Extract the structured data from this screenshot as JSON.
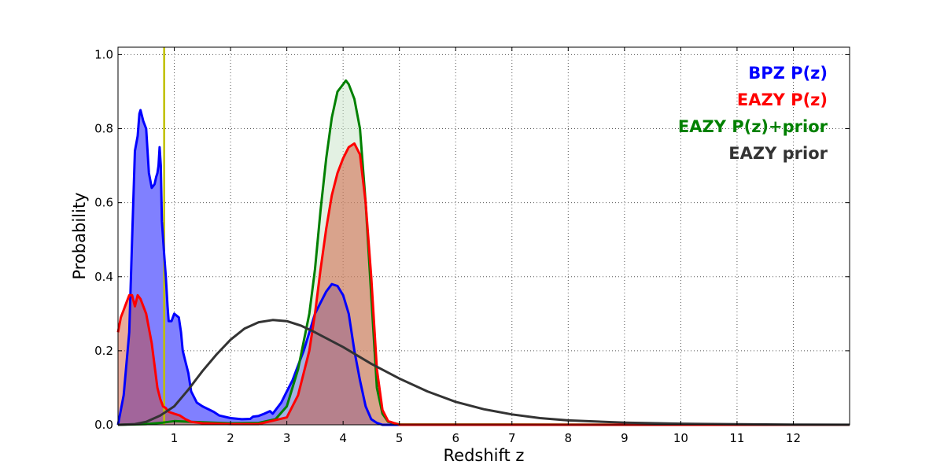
{
  "chart_data": {
    "type": "area",
    "xlabel": "Redshift z",
    "ylabel": "Probability",
    "xlim": [
      0,
      13
    ],
    "ylim": [
      0,
      1.02
    ],
    "x_ticks": [
      1,
      2,
      3,
      4,
      5,
      6,
      7,
      8,
      9,
      10,
      11,
      12
    ],
    "y_ticks": [
      0.0,
      0.2,
      0.4,
      0.6,
      0.8,
      1.0
    ],
    "y_tick_labels": [
      "0.0",
      "0.2",
      "0.4",
      "0.6",
      "0.8",
      "1.0"
    ],
    "grid": true,
    "legend_position": "top-right",
    "vertical_line": {
      "x": 0.82,
      "color": "#bfbf00"
    },
    "series": [
      {
        "name": "BPZ P(z)",
        "color": "#0000ff",
        "fill": "#8080ff",
        "fill_opacity": 1.0,
        "points": [
          [
            0,
            0
          ],
          [
            0.1,
            0.08
          ],
          [
            0.2,
            0.25
          ],
          [
            0.25,
            0.5
          ],
          [
            0.3,
            0.74
          ],
          [
            0.35,
            0.78
          ],
          [
            0.38,
            0.84
          ],
          [
            0.4,
            0.85
          ],
          [
            0.45,
            0.82
          ],
          [
            0.5,
            0.8
          ],
          [
            0.55,
            0.68
          ],
          [
            0.6,
            0.64
          ],
          [
            0.65,
            0.65
          ],
          [
            0.68,
            0.67
          ],
          [
            0.7,
            0.68
          ],
          [
            0.72,
            0.7
          ],
          [
            0.74,
            0.75
          ],
          [
            0.76,
            0.7
          ],
          [
            0.78,
            0.55
          ],
          [
            0.82,
            0.46
          ],
          [
            0.85,
            0.4
          ],
          [
            0.88,
            0.32
          ],
          [
            0.9,
            0.28
          ],
          [
            0.95,
            0.28
          ],
          [
            1.0,
            0.3
          ],
          [
            1.08,
            0.29
          ],
          [
            1.12,
            0.25
          ],
          [
            1.15,
            0.2
          ],
          [
            1.2,
            0.17
          ],
          [
            1.25,
            0.14
          ],
          [
            1.3,
            0.09
          ],
          [
            1.4,
            0.06
          ],
          [
            1.5,
            0.05
          ],
          [
            1.7,
            0.035
          ],
          [
            1.8,
            0.025
          ],
          [
            2.0,
            0.018
          ],
          [
            2.2,
            0.015
          ],
          [
            2.35,
            0.016
          ],
          [
            2.4,
            0.022
          ],
          [
            2.5,
            0.024
          ],
          [
            2.6,
            0.03
          ],
          [
            2.7,
            0.037
          ],
          [
            2.75,
            0.03
          ],
          [
            2.8,
            0.04
          ],
          [
            2.9,
            0.06
          ],
          [
            3.0,
            0.09
          ],
          [
            3.1,
            0.12
          ],
          [
            3.2,
            0.16
          ],
          [
            3.3,
            0.2
          ],
          [
            3.4,
            0.25
          ],
          [
            3.5,
            0.3
          ],
          [
            3.6,
            0.33
          ],
          [
            3.7,
            0.36
          ],
          [
            3.8,
            0.38
          ],
          [
            3.9,
            0.375
          ],
          [
            4.0,
            0.35
          ],
          [
            4.1,
            0.3
          ],
          [
            4.2,
            0.2
          ],
          [
            4.3,
            0.12
          ],
          [
            4.4,
            0.05
          ],
          [
            4.5,
            0.015
          ],
          [
            4.6,
            0.005
          ],
          [
            4.7,
            0.0
          ],
          [
            13,
            0
          ]
        ]
      },
      {
        "name": "EAZY P(z)",
        "color": "#ff0000",
        "fill": "#cc4422",
        "fill_opacity": 0.45,
        "points": [
          [
            0,
            0.25
          ],
          [
            0.05,
            0.29
          ],
          [
            0.1,
            0.31
          ],
          [
            0.15,
            0.33
          ],
          [
            0.2,
            0.35
          ],
          [
            0.25,
            0.35
          ],
          [
            0.3,
            0.32
          ],
          [
            0.35,
            0.35
          ],
          [
            0.4,
            0.34
          ],
          [
            0.5,
            0.3
          ],
          [
            0.6,
            0.22
          ],
          [
            0.7,
            0.1
          ],
          [
            0.75,
            0.07
          ],
          [
            0.8,
            0.05
          ],
          [
            0.85,
            0.045
          ],
          [
            0.9,
            0.035
          ],
          [
            1.0,
            0.03
          ],
          [
            1.1,
            0.025
          ],
          [
            1.2,
            0.015
          ],
          [
            1.3,
            0.008
          ],
          [
            1.5,
            0.004
          ],
          [
            2.0,
            0.002
          ],
          [
            2.5,
            0.002
          ],
          [
            3.0,
            0.02
          ],
          [
            3.2,
            0.08
          ],
          [
            3.4,
            0.2
          ],
          [
            3.5,
            0.3
          ],
          [
            3.6,
            0.42
          ],
          [
            3.7,
            0.53
          ],
          [
            3.8,
            0.62
          ],
          [
            3.9,
            0.68
          ],
          [
            4.0,
            0.72
          ],
          [
            4.1,
            0.75
          ],
          [
            4.2,
            0.76
          ],
          [
            4.3,
            0.73
          ],
          [
            4.4,
            0.6
          ],
          [
            4.5,
            0.4
          ],
          [
            4.6,
            0.15
          ],
          [
            4.7,
            0.04
          ],
          [
            4.8,
            0.01
          ],
          [
            5.0,
            0.0
          ],
          [
            13,
            0
          ]
        ]
      },
      {
        "name": "EAZY P(z)+prior",
        "color": "#008000",
        "fill": "#c8e4c8",
        "fill_opacity": 0.5,
        "points": [
          [
            0,
            0
          ],
          [
            0.5,
            0.002
          ],
          [
            0.8,
            0.006
          ],
          [
            1.0,
            0.01
          ],
          [
            1.3,
            0.008
          ],
          [
            2.0,
            0.004
          ],
          [
            2.5,
            0.005
          ],
          [
            2.8,
            0.015
          ],
          [
            3.0,
            0.05
          ],
          [
            3.2,
            0.15
          ],
          [
            3.4,
            0.3
          ],
          [
            3.5,
            0.42
          ],
          [
            3.6,
            0.58
          ],
          [
            3.7,
            0.72
          ],
          [
            3.8,
            0.83
          ],
          [
            3.9,
            0.9
          ],
          [
            4.0,
            0.92
          ],
          [
            4.05,
            0.93
          ],
          [
            4.1,
            0.92
          ],
          [
            4.2,
            0.88
          ],
          [
            4.3,
            0.8
          ],
          [
            4.4,
            0.6
          ],
          [
            4.5,
            0.35
          ],
          [
            4.6,
            0.1
          ],
          [
            4.7,
            0.03
          ],
          [
            4.8,
            0.008
          ],
          [
            5.0,
            0.001
          ],
          [
            13,
            0
          ]
        ]
      },
      {
        "name": "EAZY prior",
        "color": "#333333",
        "fill": null,
        "fill_opacity": 0,
        "points": [
          [
            0,
            0.0
          ],
          [
            0.3,
            0.002
          ],
          [
            0.5,
            0.008
          ],
          [
            0.75,
            0.025
          ],
          [
            1.0,
            0.05
          ],
          [
            1.25,
            0.095
          ],
          [
            1.5,
            0.145
          ],
          [
            1.75,
            0.19
          ],
          [
            2.0,
            0.23
          ],
          [
            2.25,
            0.26
          ],
          [
            2.5,
            0.277
          ],
          [
            2.75,
            0.283
          ],
          [
            3.0,
            0.28
          ],
          [
            3.25,
            0.268
          ],
          [
            3.5,
            0.25
          ],
          [
            4.0,
            0.21
          ],
          [
            4.5,
            0.165
          ],
          [
            5.0,
            0.125
          ],
          [
            5.5,
            0.09
          ],
          [
            6.0,
            0.062
          ],
          [
            6.5,
            0.042
          ],
          [
            7.0,
            0.028
          ],
          [
            7.5,
            0.018
          ],
          [
            8.0,
            0.012
          ],
          [
            9.0,
            0.006
          ],
          [
            10.0,
            0.003
          ],
          [
            11.0,
            0.0015
          ],
          [
            12.0,
            0.0007
          ],
          [
            13.0,
            0.0003
          ]
        ]
      }
    ]
  }
}
